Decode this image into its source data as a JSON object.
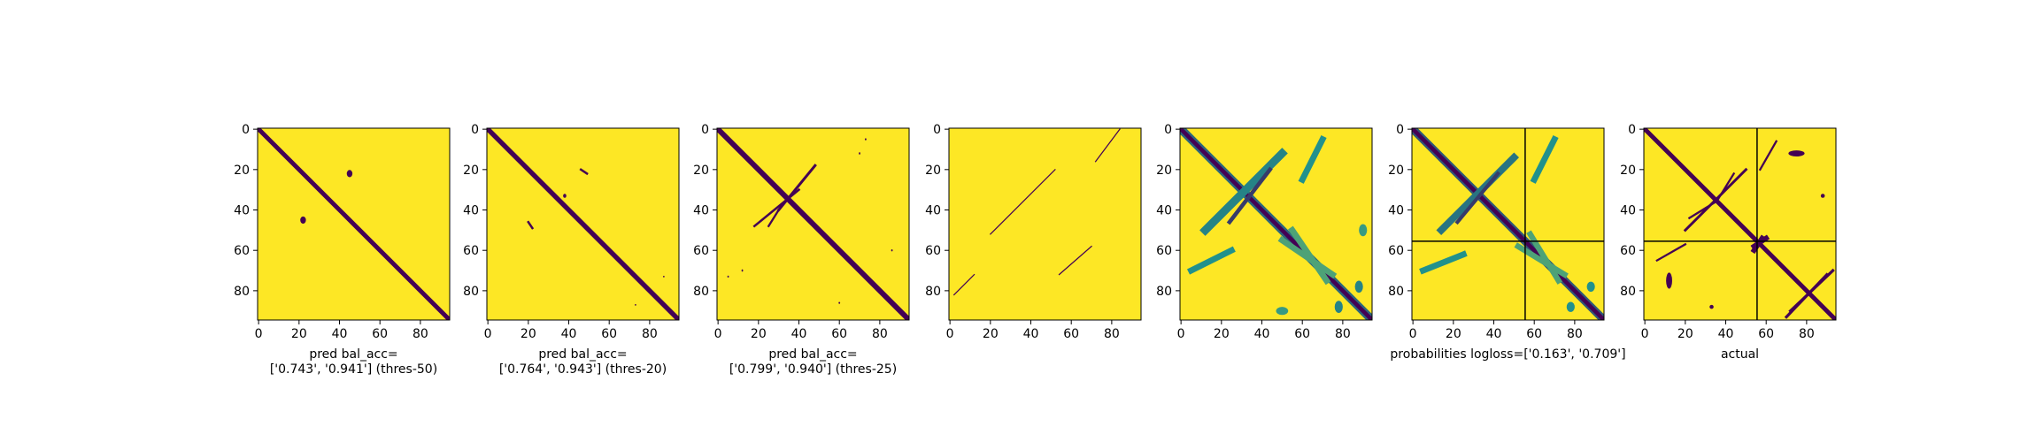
{
  "chart_data": [
    {
      "type": "heatmap",
      "matrix_size": 95,
      "xticks": [
        0,
        20,
        40,
        60,
        80
      ],
      "yticks": [
        0,
        20,
        40,
        60,
        80
      ],
      "xlabel_lines": [
        "pred bal_acc=",
        "['0.743', '0.941'] (thres-50)"
      ],
      "colors": {
        "low": "#440154",
        "high": "#fde725"
      },
      "shapes": [
        {
          "kind": "band",
          "start": [
            0,
            0
          ],
          "end": [
            94,
            94
          ],
          "width": 2.2,
          "value": 0
        },
        {
          "kind": "blob",
          "center": [
            45,
            22
          ],
          "r": [
            1.8,
            1.4
          ],
          "value": 0
        },
        {
          "kind": "blob",
          "center": [
            22,
            45
          ],
          "r": [
            1.8,
            1.4
          ],
          "value": 0
        }
      ]
    },
    {
      "type": "heatmap",
      "matrix_size": 95,
      "xticks": [
        0,
        20,
        40,
        60,
        80
      ],
      "yticks": [
        0,
        20,
        40,
        60,
        80
      ],
      "xlabel_lines": [
        "pred bal_acc=",
        "['0.764', '0.943'] (thres-20)"
      ],
      "colors": {
        "low": "#440154",
        "high": "#fde725"
      },
      "shapes": [
        {
          "kind": "band",
          "start": [
            0,
            0
          ],
          "end": [
            94,
            94
          ],
          "width": 2.4,
          "value": 0
        },
        {
          "kind": "line",
          "start": [
            46,
            20
          ],
          "end": [
            49,
            22
          ],
          "width": 1.1,
          "value": 0
        },
        {
          "kind": "line",
          "start": [
            20,
            46
          ],
          "end": [
            22,
            49
          ],
          "width": 1.1,
          "value": 0
        },
        {
          "kind": "blob",
          "center": [
            33,
            38
          ],
          "r": [
            1.0,
            0.8
          ],
          "value": 0
        },
        {
          "kind": "blob",
          "center": [
            87,
            73
          ],
          "r": [
            0.4,
            0.4
          ],
          "value": 0
        },
        {
          "kind": "blob",
          "center": [
            73,
            87
          ],
          "r": [
            0.4,
            0.4
          ],
          "value": 0
        }
      ]
    },
    {
      "type": "heatmap",
      "matrix_size": 95,
      "xticks": [
        0,
        20,
        40,
        60,
        80
      ],
      "yticks": [
        0,
        20,
        40,
        60,
        80
      ],
      "xlabel_lines": [
        "pred bal_acc=",
        "['0.799', '0.940'] (thres-25)"
      ],
      "colors": {
        "low": "#440154",
        "high": "#fde725"
      },
      "shapes": [
        {
          "kind": "band",
          "start": [
            0,
            0
          ],
          "end": [
            94,
            94
          ],
          "width": 2.6,
          "value": 0
        },
        {
          "kind": "line",
          "start": [
            18,
            48
          ],
          "end": [
            40,
            30
          ],
          "width": 1.3,
          "value": 0
        },
        {
          "kind": "line",
          "start": [
            30,
            40
          ],
          "end": [
            48,
            18
          ],
          "width": 1.1,
          "value": 0
        },
        {
          "kind": "line",
          "start": [
            40,
            30
          ],
          "end": [
            48,
            25
          ],
          "width": 1.0,
          "value": 0
        },
        {
          "kind": "blob",
          "center": [
            12,
            70
          ],
          "r": [
            0.6,
            0.4
          ],
          "value": 0
        },
        {
          "kind": "blob",
          "center": [
            70,
            12
          ],
          "r": [
            0.6,
            0.4
          ],
          "value": 0
        },
        {
          "kind": "blob",
          "center": [
            86,
            60
          ],
          "r": [
            0.5,
            0.4
          ],
          "value": 0
        },
        {
          "kind": "blob",
          "center": [
            60,
            86
          ],
          "r": [
            0.5,
            0.4
          ],
          "value": 0
        },
        {
          "kind": "blob",
          "center": [
            5,
            73
          ],
          "r": [
            0.5,
            0.4
          ],
          "value": 0
        },
        {
          "kind": "blob",
          "center": [
            73,
            5
          ],
          "r": [
            0.5,
            0.4
          ],
          "value": 0
        }
      ]
    },
    {
      "type": "heatmap",
      "matrix_size": 95,
      "xticks": [
        0,
        20,
        40,
        60,
        80
      ],
      "yticks": [
        0,
        20,
        40,
        60,
        80
      ],
      "xlabel_lines": [],
      "colors": {
        "low": "#440154",
        "high": "#fde725"
      },
      "shapes": [
        {
          "kind": "line",
          "start": [
            0,
            84
          ],
          "end": [
            16,
            72
          ],
          "width": 0.55,
          "value": 0
        },
        {
          "kind": "line",
          "start": [
            20,
            52
          ],
          "end": [
            52,
            20
          ],
          "width": 0.55,
          "value": 0
        },
        {
          "kind": "line",
          "start": [
            58,
            70
          ],
          "end": [
            72,
            54
          ],
          "width": 0.55,
          "value": 0
        },
        {
          "kind": "line",
          "start": [
            72,
            12
          ],
          "end": [
            82,
            2
          ],
          "width": 0.55,
          "value": 0
        }
      ]
    },
    {
      "type": "heatmap",
      "matrix_size": 95,
      "xticks": [
        0,
        20,
        40,
        60,
        80
      ],
      "yticks": [
        0,
        20,
        40,
        60,
        80
      ],
      "xlabel_lines": [],
      "colors": {
        "low": "#440154",
        "high": "#fde725",
        "mid": "#21918c"
      },
      "shapes": [
        {
          "kind": "band",
          "start": [
            0,
            0
          ],
          "end": [
            94,
            94
          ],
          "width": 4.2,
          "value": 0.35
        },
        {
          "kind": "band",
          "start": [
            0,
            0
          ],
          "end": [
            94,
            94
          ],
          "width": 2.0,
          "value": 0
        },
        {
          "kind": "band",
          "start": [
            12,
            50
          ],
          "end": [
            50,
            12
          ],
          "width": 4.0,
          "value": 0.45
        },
        {
          "kind": "band",
          "start": [
            20,
            44
          ],
          "end": [
            46,
            24
          ],
          "width": 2.0,
          "value": 0.2
        },
        {
          "kind": "band",
          "start": [
            5,
            70
          ],
          "end": [
            25,
            60
          ],
          "width": 3.0,
          "value": 0.5
        },
        {
          "kind": "band",
          "start": [
            60,
            25
          ],
          "end": [
            70,
            5
          ],
          "width": 3.0,
          "value": 0.5
        },
        {
          "kind": "band",
          "start": [
            50,
            55
          ],
          "end": [
            75,
            72
          ],
          "width": 3.0,
          "value": 0.6
        },
        {
          "kind": "band",
          "start": [
            55,
            50
          ],
          "end": [
            72,
            75
          ],
          "width": 3.0,
          "value": 0.6
        },
        {
          "kind": "blob",
          "center": [
            88,
            78
          ],
          "r": [
            3.0,
            2.0
          ],
          "value": 0.45
        },
        {
          "kind": "blob",
          "center": [
            78,
            88
          ],
          "r": [
            3.0,
            2.0
          ],
          "value": 0.45
        },
        {
          "kind": "blob",
          "center": [
            90,
            50
          ],
          "r": [
            2.0,
            3.0
          ],
          "value": 0.55
        },
        {
          "kind": "blob",
          "center": [
            50,
            90
          ],
          "r": [
            3.0,
            2.0
          ],
          "value": 0.55
        }
      ]
    },
    {
      "type": "heatmap",
      "matrix_size": 95,
      "xticks": [
        0,
        20,
        40,
        60,
        80
      ],
      "yticks": [
        0,
        20,
        40,
        60,
        80
      ],
      "xlabel_lines": [
        "probabilities logloss=['0.163', '0.709']"
      ],
      "colors": {
        "low": "#440154",
        "high": "#fde725",
        "mid": "#21918c"
      },
      "divider_lines": [
        56,
        56
      ],
      "shapes": [
        {
          "kind": "band",
          "start": [
            0,
            0
          ],
          "end": [
            94,
            94
          ],
          "width": 4.0,
          "value": 0.3
        },
        {
          "kind": "band",
          "start": [
            0,
            0
          ],
          "end": [
            94,
            94
          ],
          "width": 2.0,
          "value": 0
        },
        {
          "kind": "band",
          "start": [
            14,
            50
          ],
          "end": [
            50,
            14
          ],
          "width": 3.5,
          "value": 0.4
        },
        {
          "kind": "band",
          "start": [
            22,
            42
          ],
          "end": [
            46,
            22
          ],
          "width": 1.8,
          "value": 0.2
        },
        {
          "kind": "band",
          "start": [
            5,
            70
          ],
          "end": [
            25,
            60
          ],
          "width": 3.0,
          "value": 0.5
        },
        {
          "kind": "band",
          "start": [
            62,
            25
          ],
          "end": [
            70,
            5
          ],
          "width": 3.0,
          "value": 0.5
        },
        {
          "kind": "band",
          "start": [
            52,
            58
          ],
          "end": [
            75,
            72
          ],
          "width": 2.8,
          "value": 0.6
        },
        {
          "kind": "band",
          "start": [
            58,
            52
          ],
          "end": [
            72,
            75
          ],
          "width": 2.8,
          "value": 0.6
        },
        {
          "kind": "blob",
          "center": [
            88,
            78
          ],
          "r": [
            2.5,
            2.0
          ],
          "value": 0.5
        },
        {
          "kind": "blob",
          "center": [
            78,
            88
          ],
          "r": [
            2.5,
            2.0
          ],
          "value": 0.5
        }
      ]
    },
    {
      "type": "heatmap",
      "matrix_size": 95,
      "xticks": [
        0,
        20,
        40,
        60,
        80
      ],
      "yticks": [
        0,
        20,
        40,
        60,
        80
      ],
      "xlabel_lines": [
        "actual"
      ],
      "colors": {
        "low": "#440154",
        "high": "#fde725"
      },
      "divider_lines": [
        56,
        56
      ],
      "shapes": [
        {
          "kind": "band",
          "start": [
            0,
            0
          ],
          "end": [
            94,
            94
          ],
          "width": 2.2,
          "value": 0
        },
        {
          "kind": "line",
          "start": [
            20,
            50
          ],
          "end": [
            50,
            20
          ],
          "width": 1.3,
          "value": 0
        },
        {
          "kind": "line",
          "start": [
            22,
            44
          ],
          "end": [
            35,
            36
          ],
          "width": 1.0,
          "value": 0
        },
        {
          "kind": "line",
          "start": [
            36,
            35
          ],
          "end": [
            44,
            22
          ],
          "width": 1.0,
          "value": 0
        },
        {
          "kind": "line",
          "start": [
            6,
            65
          ],
          "end": [
            20,
            57
          ],
          "width": 1.0,
          "value": 0
        },
        {
          "kind": "line",
          "start": [
            57,
            20
          ],
          "end": [
            65,
            6
          ],
          "width": 1.0,
          "value": 0
        },
        {
          "kind": "line",
          "start": [
            54,
            58
          ],
          "end": [
            60,
            54
          ],
          "width": 2.5,
          "value": 0
        },
        {
          "kind": "line",
          "start": [
            58,
            54
          ],
          "end": [
            54,
            60
          ],
          "width": 2.5,
          "value": 0
        },
        {
          "kind": "line",
          "start": [
            70,
            93
          ],
          "end": [
            90,
            72
          ],
          "width": 1.4,
          "value": 0
        },
        {
          "kind": "line",
          "start": [
            72,
            90
          ],
          "end": [
            93,
            70
          ],
          "width": 1.4,
          "value": 0
        },
        {
          "kind": "blob",
          "center": [
            12,
            75
          ],
          "r": [
            1.5,
            4.0
          ],
          "value": 0
        },
        {
          "kind": "blob",
          "center": [
            75,
            12
          ],
          "r": [
            4.0,
            1.5
          ],
          "value": 0
        },
        {
          "kind": "blob",
          "center": [
            88,
            33
          ],
          "r": [
            1.0,
            1.0
          ],
          "value": 0
        },
        {
          "kind": "blob",
          "center": [
            33,
            88
          ],
          "r": [
            1.0,
            1.0
          ],
          "value": 0
        }
      ]
    }
  ]
}
